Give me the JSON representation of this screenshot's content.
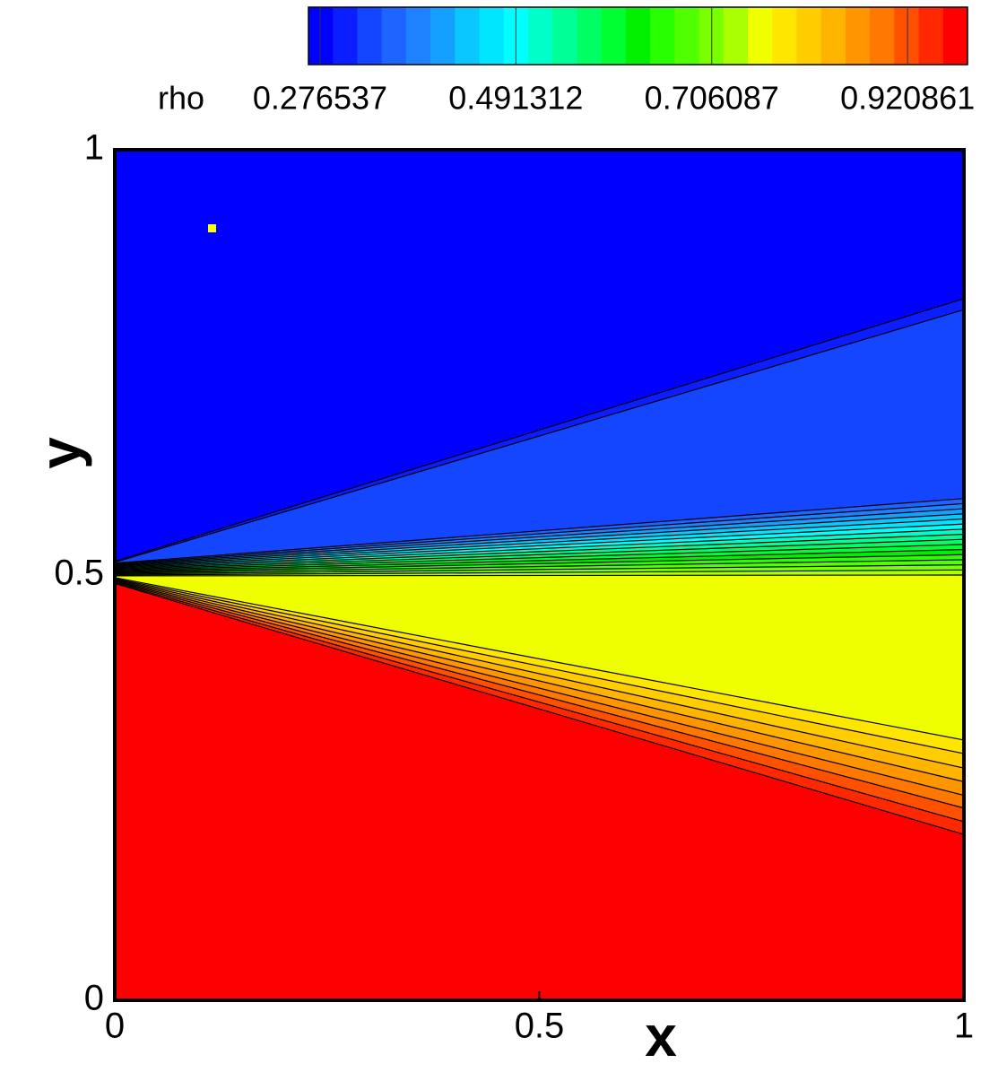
{
  "chart_data": {
    "type": "contour",
    "x_label": "x",
    "y_label": "y",
    "xlim": [
      0,
      1
    ],
    "ylim": [
      0,
      1
    ],
    "xticks": [
      0,
      0.5,
      1
    ],
    "yticks": [
      0,
      0.5,
      1
    ],
    "x": [
      0,
      1
    ],
    "colorbar": {
      "label": "rho",
      "clim": [
        0.2638,
        0.9866
      ],
      "ticks": [
        0.276537,
        0.491312,
        0.706087,
        0.920861
      ]
    },
    "colors": [
      "#0000ff",
      "#0a1eff",
      "#1446ff",
      "#1e64ff",
      "#1e82ff",
      "#14a0ff",
      "#0ac8ff",
      "#00e6ff",
      "#00ffff",
      "#00ffc8",
      "#00ff96",
      "#00ff64",
      "#00ff32",
      "#00f000",
      "#28ff00",
      "#50ff00",
      "#78ff00",
      "#aaff00",
      "#f0ff00",
      "#ffe600",
      "#ffcd00",
      "#ffb400",
      "#ff9600",
      "#ff7800",
      "#ff5000",
      "#ff2800",
      "#ff0000"
    ],
    "contours": [
      {
        "level": 0.2907,
        "y": [
          0.516,
          0.825
        ]
      },
      {
        "level": 0.3175,
        "y": [
          0.515,
          0.812
        ]
      },
      {
        "level": 0.3444,
        "y": [
          0.514,
          0.59
        ]
      },
      {
        "level": 0.3712,
        "y": [
          0.513,
          0.584
        ]
      },
      {
        "level": 0.398,
        "y": [
          0.512,
          0.578
        ]
      },
      {
        "level": 0.4249,
        "y": [
          0.511,
          0.572
        ]
      },
      {
        "level": 0.4517,
        "y": [
          0.51,
          0.566
        ]
      },
      {
        "level": 0.4786,
        "y": [
          0.509,
          0.56
        ]
      },
      {
        "level": 0.5054,
        "y": [
          0.508,
          0.554
        ]
      },
      {
        "level": 0.5323,
        "y": [
          0.507,
          0.548
        ]
      },
      {
        "level": 0.5591,
        "y": [
          0.506,
          0.542
        ]
      },
      {
        "level": 0.586,
        "y": [
          0.505,
          0.536
        ]
      },
      {
        "level": 0.6128,
        "y": [
          0.504,
          0.53
        ]
      },
      {
        "level": 0.6397,
        "y": [
          0.503,
          0.524
        ]
      },
      {
        "level": 0.6665,
        "y": [
          0.502,
          0.518
        ]
      },
      {
        "level": 0.6934,
        "y": [
          0.501,
          0.512
        ]
      },
      {
        "level": 0.7202,
        "y": [
          0.5,
          0.506
        ]
      },
      {
        "level": 0.7471,
        "y": [
          0.499,
          0.5
        ]
      },
      {
        "level": 0.7739,
        "y": [
          0.497,
          0.306
        ]
      },
      {
        "level": 0.8008,
        "y": [
          0.496,
          0.29
        ]
      },
      {
        "level": 0.8276,
        "y": [
          0.495,
          0.273
        ]
      },
      {
        "level": 0.8545,
        "y": [
          0.494,
          0.257
        ]
      },
      {
        "level": 0.8813,
        "y": [
          0.493,
          0.241
        ]
      },
      {
        "level": 0.9082,
        "y": [
          0.492,
          0.226
        ]
      },
      {
        "level": 0.935,
        "y": [
          0.491,
          0.21
        ]
      },
      {
        "level": 0.9619,
        "y": [
          0.49,
          0.195
        ]
      }
    ]
  }
}
